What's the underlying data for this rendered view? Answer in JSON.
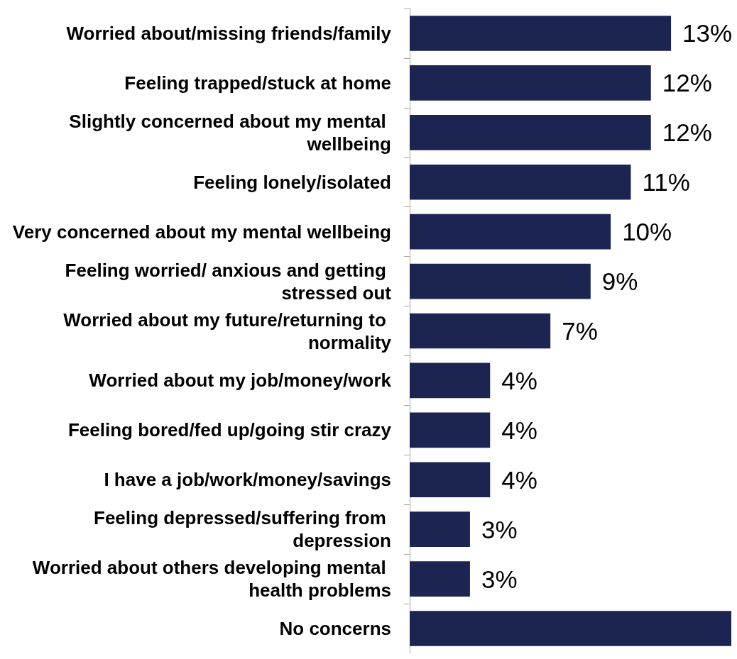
{
  "chart_data": {
    "type": "bar",
    "orientation": "horizontal",
    "color": "#1c2551",
    "categories": [
      "Worried about/missing friends/family",
      "Feeling trapped/stuck at home",
      "Slightly concerned about my mental wellbeing",
      "Feeling lonely/isolated",
      "Very concerned about my mental wellbeing",
      "Feeling worried/ anxious and getting stressed out",
      "Worried about my future/returning to normality",
      "Worried about my job/money/work",
      "Feeling bored/fed up/going stir crazy",
      "I have a job/work/money/savings",
      "Feeling depressed/suffering from depression",
      "Worried about others developing mental health problems",
      "No concerns"
    ],
    "values": [
      13,
      12,
      12,
      11,
      10,
      9,
      7,
      4,
      4,
      4,
      3,
      3,
      16
    ],
    "value_labels": [
      "13%",
      "12%",
      "12%",
      "11%",
      "10%",
      "9%",
      "7%",
      "4%",
      "4%",
      "4%",
      "3%",
      "3%",
      null
    ]
  }
}
